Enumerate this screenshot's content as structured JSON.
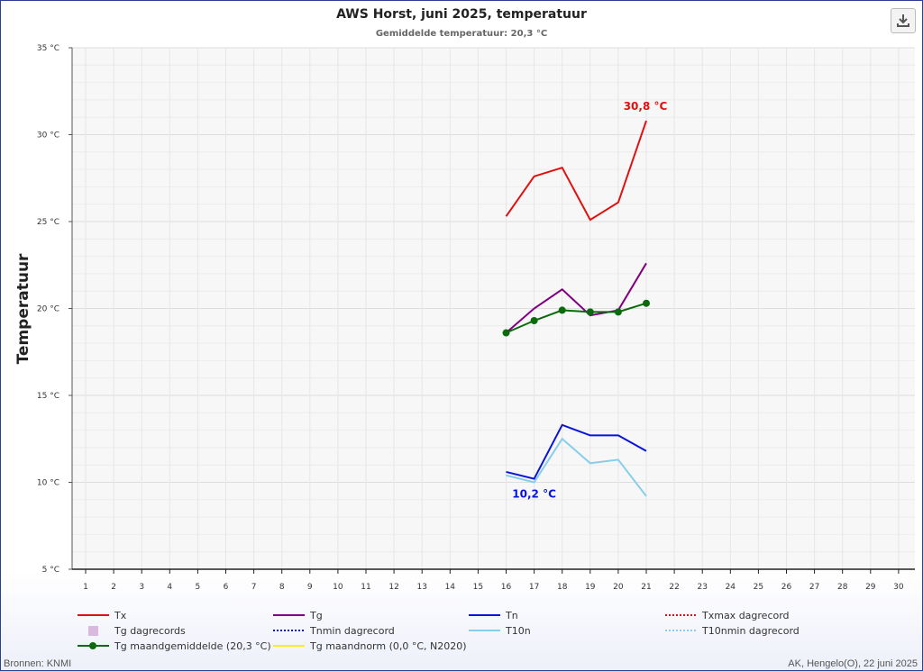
{
  "chart_data": {
    "type": "line",
    "title": "AWS Horst, juni 2025, temperatuur",
    "subtitle": "Gemiddelde temperatuur: 20,3 °C",
    "ylabel": "Temperatuur",
    "ylim": [
      5,
      35
    ],
    "yticks": [
      5,
      10,
      15,
      20,
      25,
      30,
      35
    ],
    "ytick_labels": [
      "5 °C",
      "10 °C",
      "15 °C",
      "20 °C",
      "25 °C",
      "30 °C",
      "35 °C"
    ],
    "x_categories": [
      "1",
      "2",
      "3",
      "4",
      "5",
      "6",
      "7",
      "8",
      "9",
      "10",
      "11",
      "12",
      "13",
      "14",
      "15",
      "16",
      "17",
      "18",
      "19",
      "20",
      "21",
      "22",
      "23",
      "24",
      "25",
      "26",
      "27",
      "28",
      "29",
      "30"
    ],
    "grid": true,
    "legend_placement": "bottom",
    "series": [
      {
        "name": "Tx",
        "color": "#e01010",
        "style": "solid",
        "x": [
          16,
          17,
          18,
          19,
          20,
          21
        ],
        "y": [
          25.3,
          27.6,
          28.1,
          25.1,
          26.1,
          30.8
        ]
      },
      {
        "name": "Tg",
        "color": "#800080",
        "style": "solid",
        "x": [
          16,
          17,
          18,
          19,
          20,
          21
        ],
        "y": [
          18.6,
          20.0,
          21.1,
          19.6,
          19.9,
          22.6
        ]
      },
      {
        "name": "Tn",
        "color": "#0a14d8",
        "style": "solid",
        "x": [
          16,
          17,
          18,
          19,
          20,
          21
        ],
        "y": [
          10.6,
          10.2,
          13.3,
          12.7,
          12.7,
          11.8
        ]
      },
      {
        "name": "Txmax dagrecord",
        "color": "#e01010",
        "style": "dotted",
        "x": [],
        "y": []
      },
      {
        "name": "Tg dagrecords",
        "color": "#d9b9e0",
        "style": "square",
        "x": [],
        "y": []
      },
      {
        "name": "Tnmin dagrecord",
        "color": "#0a14d8",
        "style": "dotted",
        "x": [],
        "y": []
      },
      {
        "name": "T10n",
        "color": "#87ceeb",
        "style": "solid",
        "x": [
          16,
          17,
          18,
          19,
          20,
          21
        ],
        "y": [
          10.4,
          10.0,
          12.5,
          11.1,
          11.3,
          9.2
        ]
      },
      {
        "name": "T10nmin dagrecord",
        "color": "#87ceeb",
        "style": "dotted",
        "x": [],
        "y": []
      },
      {
        "name": "Tg maandgemiddelde (20,3 °C)",
        "color": "#0a6b0a",
        "style": "marker-line",
        "x": [
          16,
          17,
          18,
          19,
          20,
          21
        ],
        "y": [
          18.6,
          19.3,
          19.9,
          19.8,
          19.8,
          20.3
        ]
      },
      {
        "name": "Tg maandnorm (0,0 °C, N2020)",
        "color": "#ffee00",
        "style": "solid",
        "x": [],
        "y": []
      }
    ],
    "annotations": [
      {
        "text": "30,8 °C",
        "x": 21,
        "y": 30.8,
        "color": "#e01010"
      },
      {
        "text": "10,2 °C",
        "x": 17,
        "y": 10.2,
        "color": "#0a14d8"
      }
    ]
  },
  "footer": {
    "left": "Bronnen: KNMI",
    "right": "AK, Hengelo(O), 22 juni 2025"
  },
  "icons": {
    "download": "download-icon"
  }
}
